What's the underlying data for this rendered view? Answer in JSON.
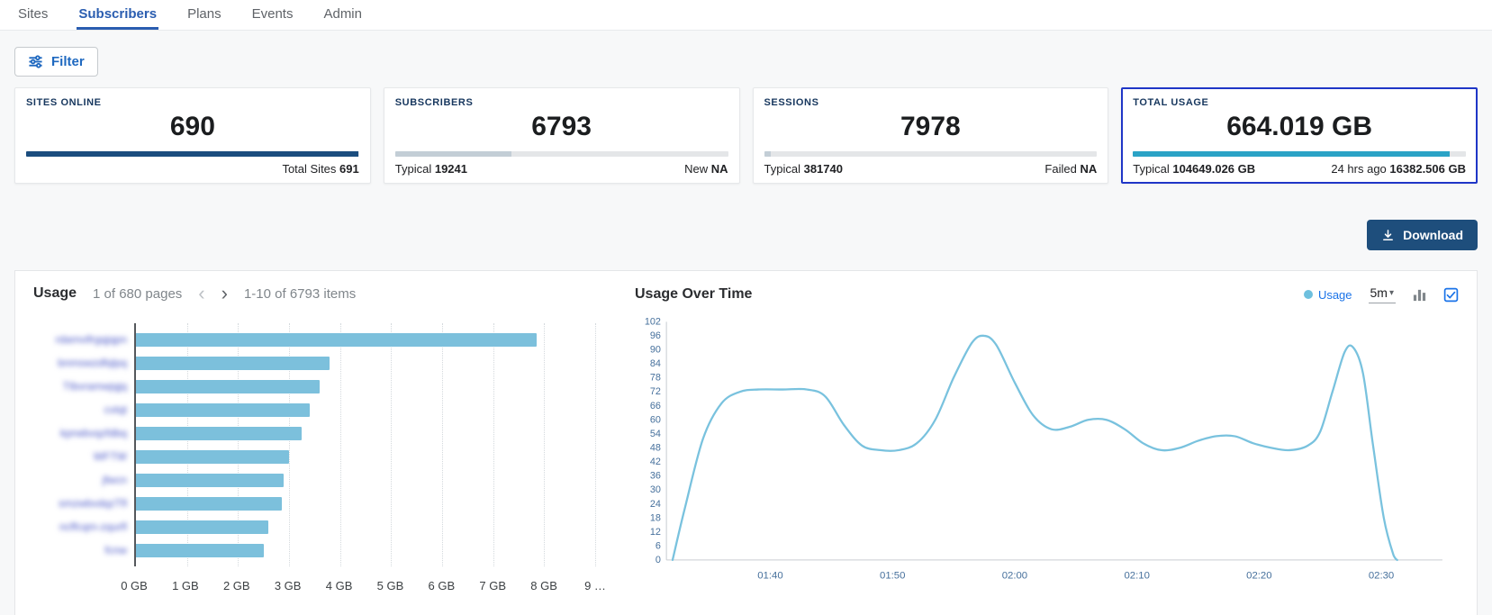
{
  "nav": {
    "tabs": [
      {
        "label": "Sites"
      },
      {
        "label": "Subscribers"
      },
      {
        "label": "Plans"
      },
      {
        "label": "Events"
      },
      {
        "label": "Admin"
      }
    ],
    "active_tab": "Subscribers"
  },
  "toolbar": {
    "filter_label": "Filter",
    "download_label": "Download"
  },
  "cards": [
    {
      "title": "SITES ONLINE",
      "value": "690",
      "bar_pct": 99.9,
      "bar_color": "#1b4d7e",
      "selected": false,
      "footer_left": {
        "label": "",
        "value": ""
      },
      "footer_right": {
        "label": "Total Sites",
        "value": "691"
      }
    },
    {
      "title": "SUBSCRIBERS",
      "value": "6793",
      "bar_pct": 35,
      "bar_color": "#c3ced6",
      "selected": false,
      "footer_left": {
        "label": "Typical",
        "value": "19241"
      },
      "footer_right": {
        "label": "New",
        "value": "NA"
      }
    },
    {
      "title": "SESSIONS",
      "value": "7978",
      "bar_pct": 2,
      "bar_color": "#c3ced6",
      "selected": false,
      "footer_left": {
        "label": "Typical",
        "value": "381740"
      },
      "footer_right": {
        "label": "Failed",
        "value": "NA"
      }
    },
    {
      "title": "TOTAL USAGE",
      "value": "664.019 GB",
      "bar_pct": 95,
      "bar_color": "#2ba3c6",
      "selected": true,
      "footer_left": {
        "label": "Typical",
        "value": "104649.026 GB"
      },
      "footer_right": {
        "label": "24 hrs ago",
        "value": "16382.506 GB"
      }
    }
  ],
  "chart_data": [
    {
      "type": "bar",
      "orientation": "horizontal",
      "title": "Usage",
      "pagination_pages": "1 of 680 pages",
      "pagination_items": "1-10 of 6793 items",
      "categories_blurred": true,
      "categories": [
        "rdamvifrgqjqpn",
        "bnmswzdfqlpq",
        "TIbvramwjqjq",
        "cvtqt",
        "kprwbvqzfdbq",
        "WFTW",
        "jfwcn",
        "smzwbvdqzTfl",
        "ncffcqm-zqurfl",
        "fcnw"
      ],
      "values": [
        7.85,
        3.8,
        3.6,
        3.4,
        3.25,
        3.0,
        2.9,
        2.85,
        2.6,
        2.5
      ],
      "value_unit": "GB",
      "xlim": [
        0,
        9
      ],
      "xtick_labels": [
        "0 GB",
        "1 GB",
        "2 GB",
        "3 GB",
        "4 GB",
        "5 GB",
        "6 GB",
        "7 GB",
        "8 GB",
        "9 …"
      ],
      "bar_color": "#7cc0dc"
    },
    {
      "type": "line",
      "title": "Usage Over Time",
      "legend": [
        {
          "label": "Usage",
          "color": "#6ec0de"
        }
      ],
      "interval": "5m",
      "ylim": [
        0,
        102
      ],
      "ytick_step": 6,
      "x_domain": [
        91.5,
        155
      ],
      "x_ticks": [
        {
          "t": 100,
          "label": "01:40"
        },
        {
          "t": 110,
          "label": "01:50"
        },
        {
          "t": 120,
          "label": "02:00"
        },
        {
          "t": 130,
          "label": "02:10"
        },
        {
          "t": 140,
          "label": "02:20"
        },
        {
          "t": 150,
          "label": "02:30"
        }
      ],
      "points": [
        [
          92,
          0
        ],
        [
          93,
          22
        ],
        [
          94.5,
          52
        ],
        [
          96,
          67
        ],
        [
          97.5,
          72
        ],
        [
          99,
          73
        ],
        [
          101,
          73
        ],
        [
          103,
          73
        ],
        [
          104.5,
          70
        ],
        [
          106,
          58
        ],
        [
          107.5,
          49
        ],
        [
          109,
          47
        ],
        [
          110.5,
          47
        ],
        [
          112,
          50
        ],
        [
          113.5,
          60
        ],
        [
          115,
          78
        ],
        [
          116.5,
          93
        ],
        [
          117.5,
          96
        ],
        [
          118.5,
          92
        ],
        [
          120,
          76
        ],
        [
          121.5,
          62
        ],
        [
          123,
          56
        ],
        [
          124.5,
          57
        ],
        [
          126,
          60
        ],
        [
          127.5,
          60
        ],
        [
          129,
          56
        ],
        [
          130.5,
          50
        ],
        [
          132,
          47
        ],
        [
          133.5,
          48
        ],
        [
          135,
          51
        ],
        [
          136.5,
          53
        ],
        [
          138,
          53
        ],
        [
          139.5,
          50
        ],
        [
          141,
          48
        ],
        [
          142.5,
          47
        ],
        [
          144,
          49
        ],
        [
          145,
          55
        ],
        [
          146,
          72
        ],
        [
          147,
          89
        ],
        [
          147.7,
          91
        ],
        [
          148.5,
          80
        ],
        [
          149.3,
          50
        ],
        [
          150.2,
          18
        ],
        [
          151,
          2
        ],
        [
          151.3,
          0
        ]
      ],
      "line_color": "#79c2de",
      "grid": false,
      "legend_position": "top-right"
    }
  ]
}
